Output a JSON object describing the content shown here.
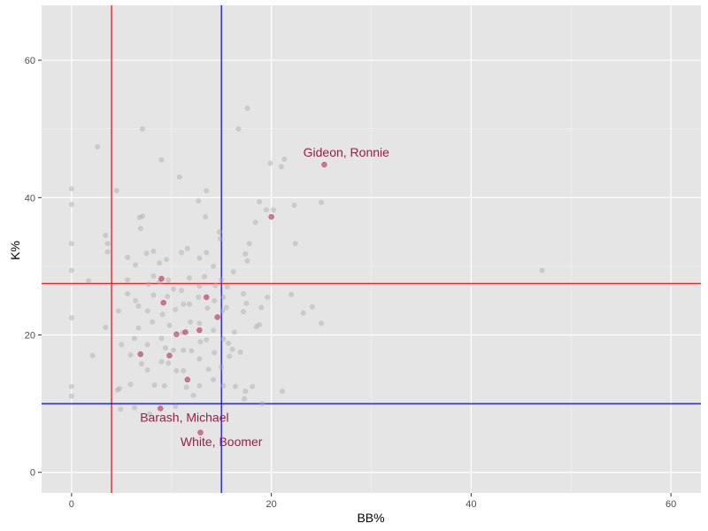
{
  "chart_data": {
    "type": "scatter",
    "title": "",
    "xlabel": "BB%",
    "ylabel": "K%",
    "xlim": [
      -3,
      63
    ],
    "ylim": [
      -3,
      68
    ],
    "x_ticks": [
      0,
      20,
      40,
      60
    ],
    "y_ticks": [
      0,
      20,
      40,
      60
    ],
    "x_tick_labels": [
      "0",
      "20",
      "40",
      "60"
    ],
    "y_tick_labels": [
      "0",
      "20",
      "40",
      "60"
    ],
    "grid": true,
    "background": "#e5e5e5",
    "colors": {
      "background_points": "#a8a8a8",
      "highlight_points": "#b5174a",
      "label": "#9c1c47",
      "red_line": "#ff0000",
      "blue_line": "#0000ff"
    },
    "reference_lines": [
      {
        "orientation": "vertical",
        "value": 4,
        "color": "#ff0000"
      },
      {
        "orientation": "vertical",
        "value": 15,
        "color": "#0000ff"
      },
      {
        "orientation": "horizontal",
        "value": 27.5,
        "color": "#ff0000"
      },
      {
        "orientation": "horizontal",
        "value": 10,
        "color": "#0000ff"
      }
    ],
    "background_points": [
      [
        0,
        41.3
      ],
      [
        0,
        39
      ],
      [
        0,
        33.3
      ],
      [
        0,
        29.4
      ],
      [
        0,
        22.5
      ],
      [
        0,
        12.5
      ],
      [
        0,
        11.1
      ],
      [
        1.7,
        27.9
      ],
      [
        2.1,
        17
      ],
      [
        2.6,
        47.4
      ],
      [
        3.4,
        34.5
      ],
      [
        3.6,
        33.3
      ],
      [
        3.6,
        32.1
      ],
      [
        3.4,
        21.1
      ],
      [
        4.5,
        41
      ],
      [
        4.7,
        23.5
      ],
      [
        4.8,
        12.2
      ],
      [
        4.6,
        12
      ],
      [
        4.9,
        9.2
      ],
      [
        5,
        18.6
      ],
      [
        5.6,
        31.3
      ],
      [
        5.6,
        28
      ],
      [
        5.6,
        26
      ],
      [
        5.9,
        17.1
      ],
      [
        5.9,
        12.8
      ],
      [
        6.4,
        30.2
      ],
      [
        6.4,
        25
      ],
      [
        6.3,
        19.5
      ],
      [
        6.3,
        9.4
      ],
      [
        6.8,
        37.1
      ],
      [
        7.1,
        37.3
      ],
      [
        6.9,
        35.5
      ],
      [
        7.1,
        50
      ],
      [
        6.7,
        24.2
      ],
      [
        6.7,
        21
      ],
      [
        7,
        15.8
      ],
      [
        7.5,
        31.9
      ],
      [
        7.7,
        27.4
      ],
      [
        7.6,
        23.5
      ],
      [
        7.6,
        18.6
      ],
      [
        7.6,
        14.9
      ],
      [
        7.8,
        8.5
      ],
      [
        8.2,
        32.2
      ],
      [
        8.2,
        28.6
      ],
      [
        8.2,
        25.8
      ],
      [
        8.1,
        21.9
      ],
      [
        8.3,
        12.7
      ],
      [
        9,
        45.5
      ],
      [
        8.8,
        30.5
      ],
      [
        8.8,
        27.7
      ],
      [
        9.1,
        23
      ],
      [
        9,
        19.5
      ],
      [
        9,
        16.1
      ],
      [
        9.3,
        12.6
      ],
      [
        9.5,
        31
      ],
      [
        9.7,
        28
      ],
      [
        9.6,
        25.6
      ],
      [
        9.8,
        21.4
      ],
      [
        9.4,
        18.1
      ],
      [
        9.7,
        15.9
      ],
      [
        10.2,
        26.7
      ],
      [
        10.4,
        23.7
      ],
      [
        10.2,
        17.8
      ],
      [
        10.5,
        14.8
      ],
      [
        10.4,
        9.6
      ],
      [
        10.8,
        43
      ],
      [
        11,
        32
      ],
      [
        11,
        26.5
      ],
      [
        11.2,
        24.5
      ],
      [
        11.1,
        20.3
      ],
      [
        11.2,
        17.8
      ],
      [
        11.2,
        14.8
      ],
      [
        11.5,
        12.4
      ],
      [
        11.6,
        32.6
      ],
      [
        11.8,
        28.3
      ],
      [
        11.8,
        24.5
      ],
      [
        11.9,
        21.9
      ],
      [
        12,
        17.7
      ],
      [
        12.2,
        11.2
      ],
      [
        12.7,
        39.5
      ],
      [
        12.8,
        31.2
      ],
      [
        12.8,
        27.1
      ],
      [
        12.7,
        25.5
      ],
      [
        12.8,
        21.7
      ],
      [
        12.9,
        19
      ],
      [
        12.8,
        16.5
      ],
      [
        12.8,
        12.6
      ],
      [
        13.5,
        41
      ],
      [
        13.4,
        37.2
      ],
      [
        13.5,
        32
      ],
      [
        13.3,
        28.5
      ],
      [
        13.6,
        23.9
      ],
      [
        13.5,
        19.3
      ],
      [
        13.7,
        15
      ],
      [
        14.2,
        30
      ],
      [
        14.4,
        27.2
      ],
      [
        14.3,
        25
      ],
      [
        14.2,
        20.7
      ],
      [
        14.3,
        17.4
      ],
      [
        14.2,
        13.5
      ],
      [
        14.8,
        35
      ],
      [
        14.9,
        34
      ],
      [
        15,
        28
      ],
      [
        15.2,
        25.5
      ],
      [
        15.1,
        23.5
      ],
      [
        15.2,
        19.4
      ],
      [
        15,
        15.3
      ],
      [
        15.2,
        12.6
      ],
      [
        15.6,
        27
      ],
      [
        15.5,
        24
      ],
      [
        15.7,
        18.8
      ],
      [
        15.8,
        16.9
      ],
      [
        16.2,
        29.2
      ],
      [
        16.3,
        20.4
      ],
      [
        16.1,
        17.9
      ],
      [
        16.4,
        12.5
      ],
      [
        16.7,
        50
      ],
      [
        16.9,
        17.5
      ],
      [
        17.2,
        26
      ],
      [
        17.2,
        23.4
      ],
      [
        17.3,
        10.7
      ],
      [
        17.6,
        53
      ],
      [
        17.4,
        31.8
      ],
      [
        17.6,
        30.8
      ],
      [
        17.5,
        24.6
      ],
      [
        17.8,
        33.3
      ],
      [
        17.4,
        11.8
      ],
      [
        18.1,
        12.5
      ],
      [
        18.4,
        36.4
      ],
      [
        18.5,
        21.2
      ],
      [
        18.8,
        39.4
      ],
      [
        18.8,
        21.5
      ],
      [
        19,
        24
      ],
      [
        19.1,
        10
      ],
      [
        19.5,
        38.2
      ],
      [
        19.6,
        25.5
      ],
      [
        19.9,
        45
      ],
      [
        20.2,
        38.2
      ],
      [
        21,
        44.5
      ],
      [
        21.3,
        45.6
      ],
      [
        21.1,
        11.8
      ],
      [
        22,
        25.9
      ],
      [
        22.3,
        38.9
      ],
      [
        22.4,
        33.3
      ],
      [
        23.2,
        23.2
      ],
      [
        24.1,
        24.1
      ],
      [
        25,
        39.3
      ],
      [
        25,
        21.7
      ],
      [
        47.1,
        29.4
      ]
    ],
    "highlight_points": [
      [
        6.9,
        17.2
      ],
      [
        8.9,
        9.3
      ],
      [
        9,
        28.2
      ],
      [
        9.2,
        24.7
      ],
      [
        9.8,
        17
      ],
      [
        10.5,
        20.1
      ],
      [
        11.4,
        20.4
      ],
      [
        11.6,
        13.5
      ],
      [
        12.8,
        20.7
      ],
      [
        12.9,
        5.8
      ],
      [
        13.5,
        25.5
      ],
      [
        14.6,
        22.6
      ],
      [
        20,
        37.2
      ],
      [
        25.3,
        44.8
      ]
    ],
    "annotations": [
      {
        "text": "Gideon, Ronnie",
        "x": 27.5,
        "y": 46.6
      },
      {
        "text": "Barash, Michael",
        "x": 11.3,
        "y": 8.0
      },
      {
        "text": "White, Boomer",
        "x": 15.0,
        "y": 4.5
      }
    ]
  }
}
